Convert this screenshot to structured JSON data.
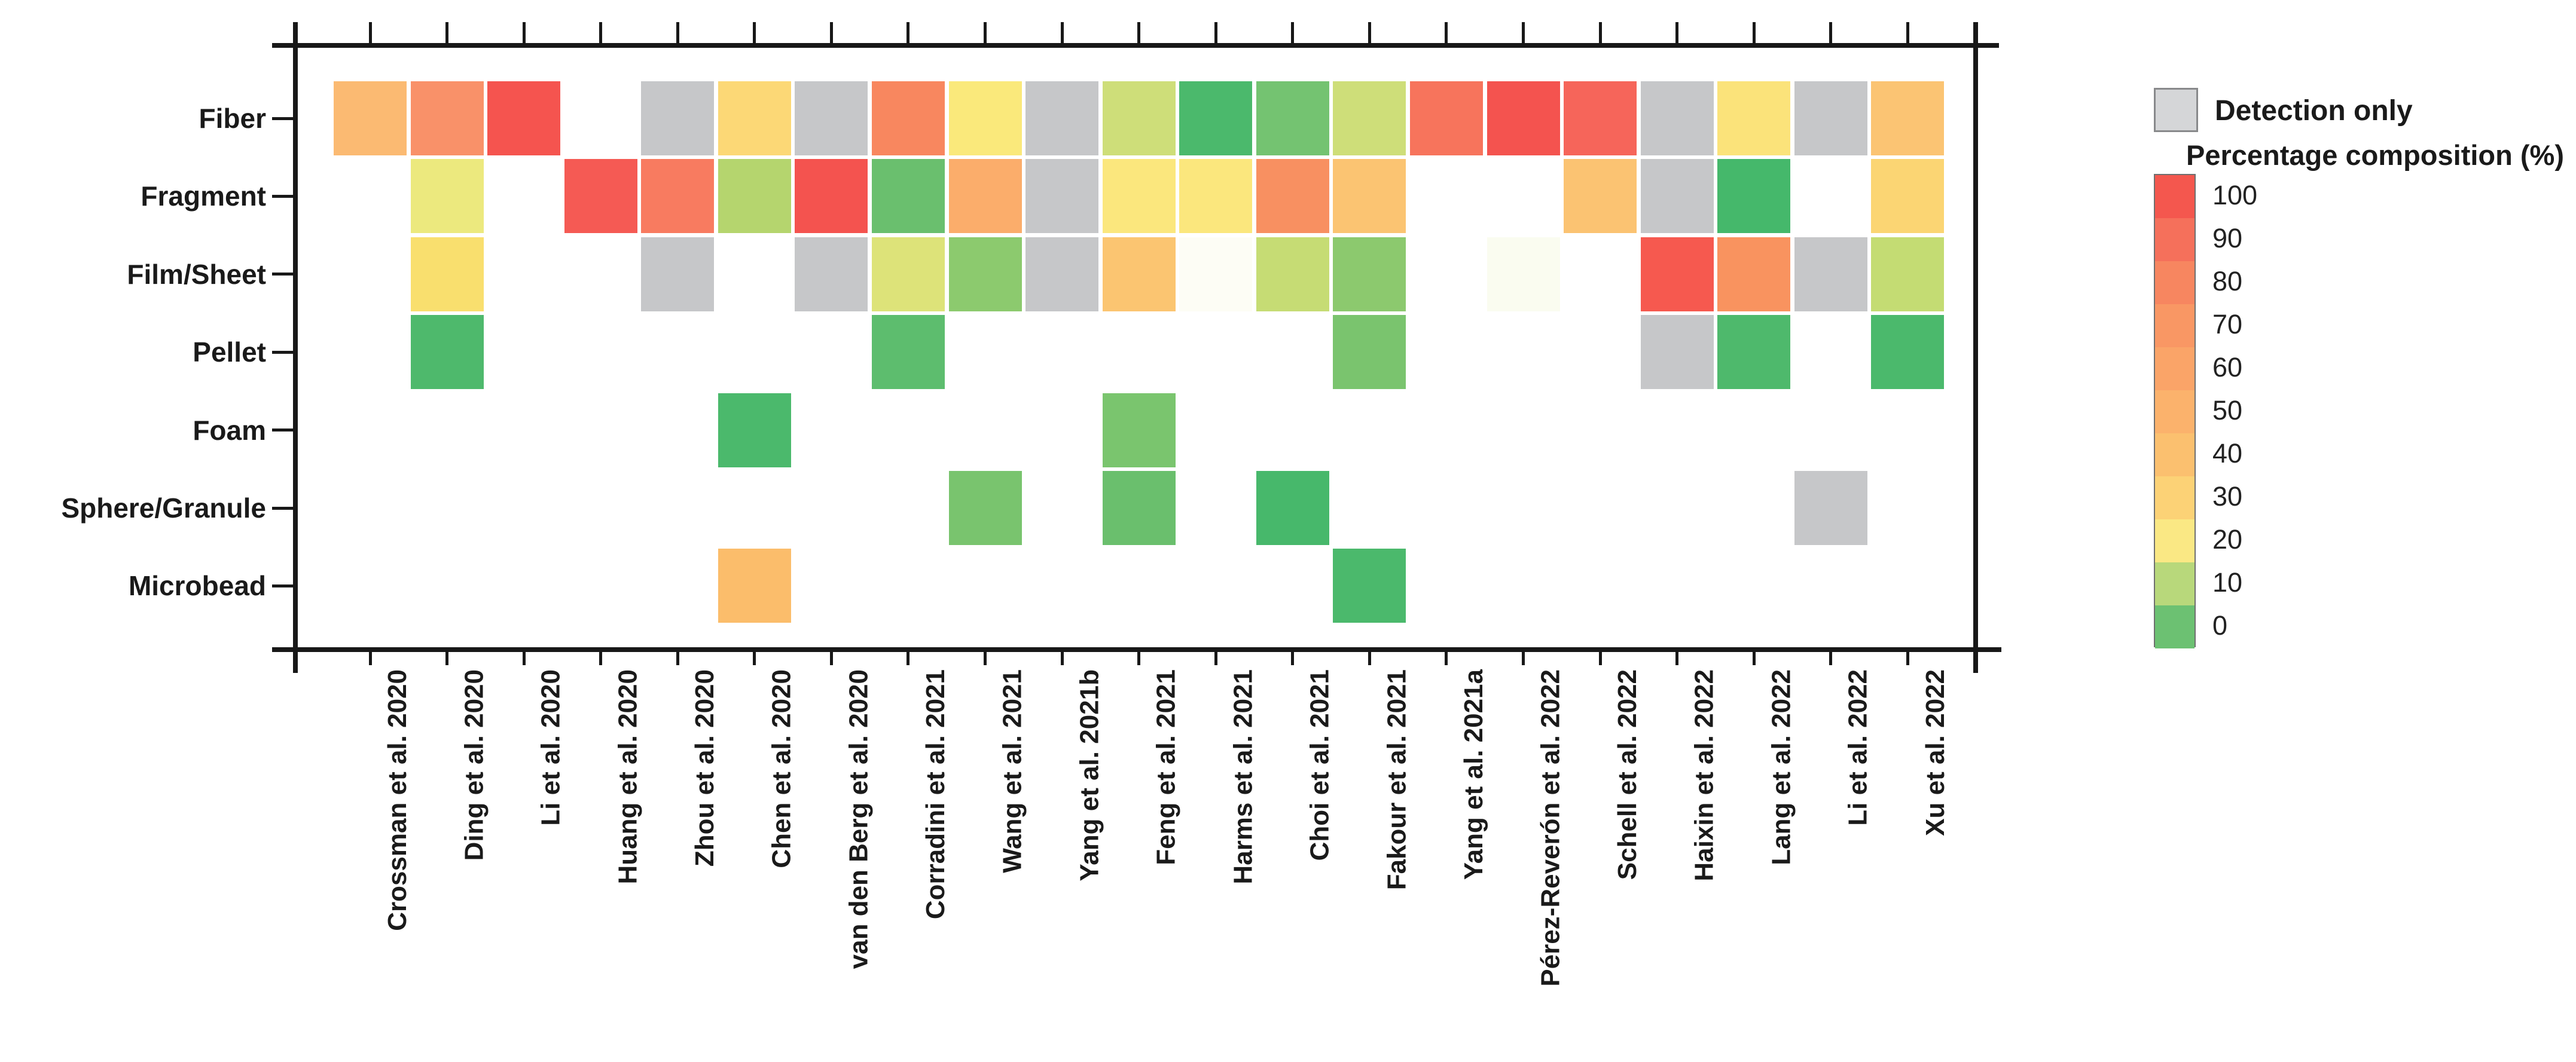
{
  "legend": {
    "detection_label": "Detection only",
    "scale_title": "Percentage composition (%)",
    "detection_swatch_color": "#d5d6d8",
    "colorbar_position": "right",
    "colorbar": [
      {
        "label": "100",
        "color": "#f4574e"
      },
      {
        "label": "90",
        "color": "#f5705b"
      },
      {
        "label": "80",
        "color": "#f78660"
      },
      {
        "label": "70",
        "color": "#f99764"
      },
      {
        "label": "60",
        "color": "#faa468"
      },
      {
        "label": "50",
        "color": "#fbb26c"
      },
      {
        "label": "40",
        "color": "#fbc06f"
      },
      {
        "label": "30",
        "color": "#fcd276"
      },
      {
        "label": "20",
        "color": "#fae884"
      },
      {
        "label": "10",
        "color": "#b8d87b"
      },
      {
        "label": "0",
        "color": "#6cc172"
      }
    ]
  },
  "chart_data": {
    "type": "heatmap",
    "ylabel": "",
    "xlabel": "",
    "value_scale": "percentage composition (%), values estimated from cell color",
    "detection_only_color": "#c6c7c9",
    "grid": false,
    "rows": [
      "Fiber",
      "Fragment",
      "Film/Sheet",
      "Pellet",
      "Foam",
      "Sphere/Granule",
      "Microbead"
    ],
    "columns": [
      "Crossman et al. 2020",
      "Ding et al. 2020",
      "Li et al. 2020",
      "Huang et al. 2020",
      "Zhou et al. 2020",
      "Chen et al. 2020",
      "van den Berg et al. 2020",
      "Corradini et al. 2021",
      "Wang et al. 2021",
      "Yang et al. 2021b",
      "Feng et al. 2021",
      "Harms et al. 2021",
      "Choi et al. 2021",
      "Fakour et al. 2021",
      "Yang et al. 2021a",
      "Pérez-Reverón et al. 2022",
      "Schell et al. 2022",
      "Haixin et al. 2022",
      "Lang et al. 2022",
      "Li et al. 2022",
      "Xu et al. 2022"
    ],
    "cells": [
      {
        "row": 0,
        "col": 0,
        "value": 42,
        "color": "#fbba72"
      },
      {
        "row": 0,
        "col": 1,
        "value": 65,
        "color": "#f99169"
      },
      {
        "row": 0,
        "col": 2,
        "value": 95,
        "color": "#f5544f"
      },
      {
        "row": 0,
        "col": 4,
        "value": null,
        "detection_only": true
      },
      {
        "row": 0,
        "col": 5,
        "value": 30,
        "color": "#fcd876"
      },
      {
        "row": 0,
        "col": 6,
        "value": null,
        "detection_only": true
      },
      {
        "row": 0,
        "col": 7,
        "value": 72,
        "color": "#f8875f"
      },
      {
        "row": 0,
        "col": 8,
        "value": 20,
        "color": "#fae97b"
      },
      {
        "row": 0,
        "col": 9,
        "value": null,
        "detection_only": true
      },
      {
        "row": 0,
        "col": 10,
        "value": 14,
        "color": "#cede79"
      },
      {
        "row": 0,
        "col": 11,
        "value": 0,
        "color": "#4bb96c"
      },
      {
        "row": 0,
        "col": 12,
        "value": 5,
        "color": "#74c371"
      },
      {
        "row": 0,
        "col": 13,
        "value": 14,
        "color": "#cede79"
      },
      {
        "row": 0,
        "col": 14,
        "value": 75,
        "color": "#f7745c"
      },
      {
        "row": 0,
        "col": 15,
        "value": 92,
        "color": "#f4534f"
      },
      {
        "row": 0,
        "col": 16,
        "value": 85,
        "color": "#f6655a"
      },
      {
        "row": 0,
        "col": 17,
        "value": null,
        "detection_only": true
      },
      {
        "row": 0,
        "col": 18,
        "value": 24,
        "color": "#fbe37a"
      },
      {
        "row": 0,
        "col": 19,
        "value": null,
        "detection_only": true
      },
      {
        "row": 0,
        "col": 20,
        "value": 38,
        "color": "#fbc473"
      },
      {
        "row": 1,
        "col": 1,
        "value": 20,
        "color": "#ece97e"
      },
      {
        "row": 1,
        "col": 3,
        "value": 85,
        "color": "#f55a54"
      },
      {
        "row": 1,
        "col": 4,
        "value": 70,
        "color": "#f87b60"
      },
      {
        "row": 1,
        "col": 5,
        "value": 12,
        "color": "#b5d56e"
      },
      {
        "row": 1,
        "col": 6,
        "value": 90,
        "color": "#f4534f"
      },
      {
        "row": 1,
        "col": 7,
        "value": 5,
        "color": "#6abf6e"
      },
      {
        "row": 1,
        "col": 8,
        "value": 45,
        "color": "#fbad6b"
      },
      {
        "row": 1,
        "col": 9,
        "value": null,
        "detection_only": true
      },
      {
        "row": 1,
        "col": 10,
        "value": 22,
        "color": "#fbe77d"
      },
      {
        "row": 1,
        "col": 11,
        "value": 22,
        "color": "#fbe77d"
      },
      {
        "row": 1,
        "col": 12,
        "value": 62,
        "color": "#f89061"
      },
      {
        "row": 1,
        "col": 13,
        "value": 40,
        "color": "#fbc472"
      },
      {
        "row": 1,
        "col": 16,
        "value": 40,
        "color": "#fbc372"
      },
      {
        "row": 1,
        "col": 17,
        "value": null,
        "detection_only": true
      },
      {
        "row": 1,
        "col": 18,
        "value": 0,
        "color": "#45b86b"
      },
      {
        "row": 1,
        "col": 20,
        "value": 32,
        "color": "#fbd573"
      },
      {
        "row": 2,
        "col": 1,
        "value": 27,
        "color": "#f9df6e"
      },
      {
        "row": 2,
        "col": 4,
        "value": null,
        "detection_only": true
      },
      {
        "row": 2,
        "col": 6,
        "value": null,
        "detection_only": true
      },
      {
        "row": 2,
        "col": 7,
        "value": 15,
        "color": "#dde379"
      },
      {
        "row": 2,
        "col": 8,
        "value": 7,
        "color": "#8cca6e"
      },
      {
        "row": 2,
        "col": 9,
        "value": null,
        "detection_only": true
      },
      {
        "row": 2,
        "col": 10,
        "value": 38,
        "color": "#fbc571"
      },
      {
        "row": 2,
        "col": 11,
        "value": null,
        "color": "#fdfdf5",
        "note": "near-white trace cell"
      },
      {
        "row": 2,
        "col": 12,
        "value": 12,
        "color": "#c6dc74"
      },
      {
        "row": 2,
        "col": 13,
        "value": 7,
        "color": "#8cc96e"
      },
      {
        "row": 2,
        "col": 15,
        "value": null,
        "color": "#fafcf0",
        "note": "near-white trace cell"
      },
      {
        "row": 2,
        "col": 17,
        "value": 85,
        "color": "#f6594f"
      },
      {
        "row": 2,
        "col": 18,
        "value": 62,
        "color": "#f9935f"
      },
      {
        "row": 2,
        "col": 19,
        "value": null,
        "detection_only": true
      },
      {
        "row": 2,
        "col": 20,
        "value": 12,
        "color": "#c4dc73"
      },
      {
        "row": 3,
        "col": 1,
        "value": 0,
        "color": "#4eb96c"
      },
      {
        "row": 3,
        "col": 7,
        "value": 2,
        "color": "#5dbd6e"
      },
      {
        "row": 3,
        "col": 13,
        "value": 6,
        "color": "#7ac46e"
      },
      {
        "row": 3,
        "col": 17,
        "value": null,
        "detection_only": true
      },
      {
        "row": 3,
        "col": 18,
        "value": 0,
        "color": "#4eb96c"
      },
      {
        "row": 3,
        "col": 20,
        "value": 0,
        "color": "#4bb96c"
      },
      {
        "row": 4,
        "col": 5,
        "value": 0,
        "color": "#4bb96c"
      },
      {
        "row": 4,
        "col": 10,
        "value": 6,
        "color": "#7ac56e"
      },
      {
        "row": 5,
        "col": 8,
        "value": 6,
        "color": "#79c46e"
      },
      {
        "row": 5,
        "col": 10,
        "value": 4,
        "color": "#6abf6d"
      },
      {
        "row": 5,
        "col": 12,
        "value": 0,
        "color": "#47b86b"
      },
      {
        "row": 5,
        "col": 19,
        "value": null,
        "detection_only": true
      },
      {
        "row": 6,
        "col": 5,
        "value": 40,
        "color": "#fbbd6b"
      },
      {
        "row": 6,
        "col": 13,
        "value": 0,
        "color": "#4bb96c"
      }
    ]
  }
}
